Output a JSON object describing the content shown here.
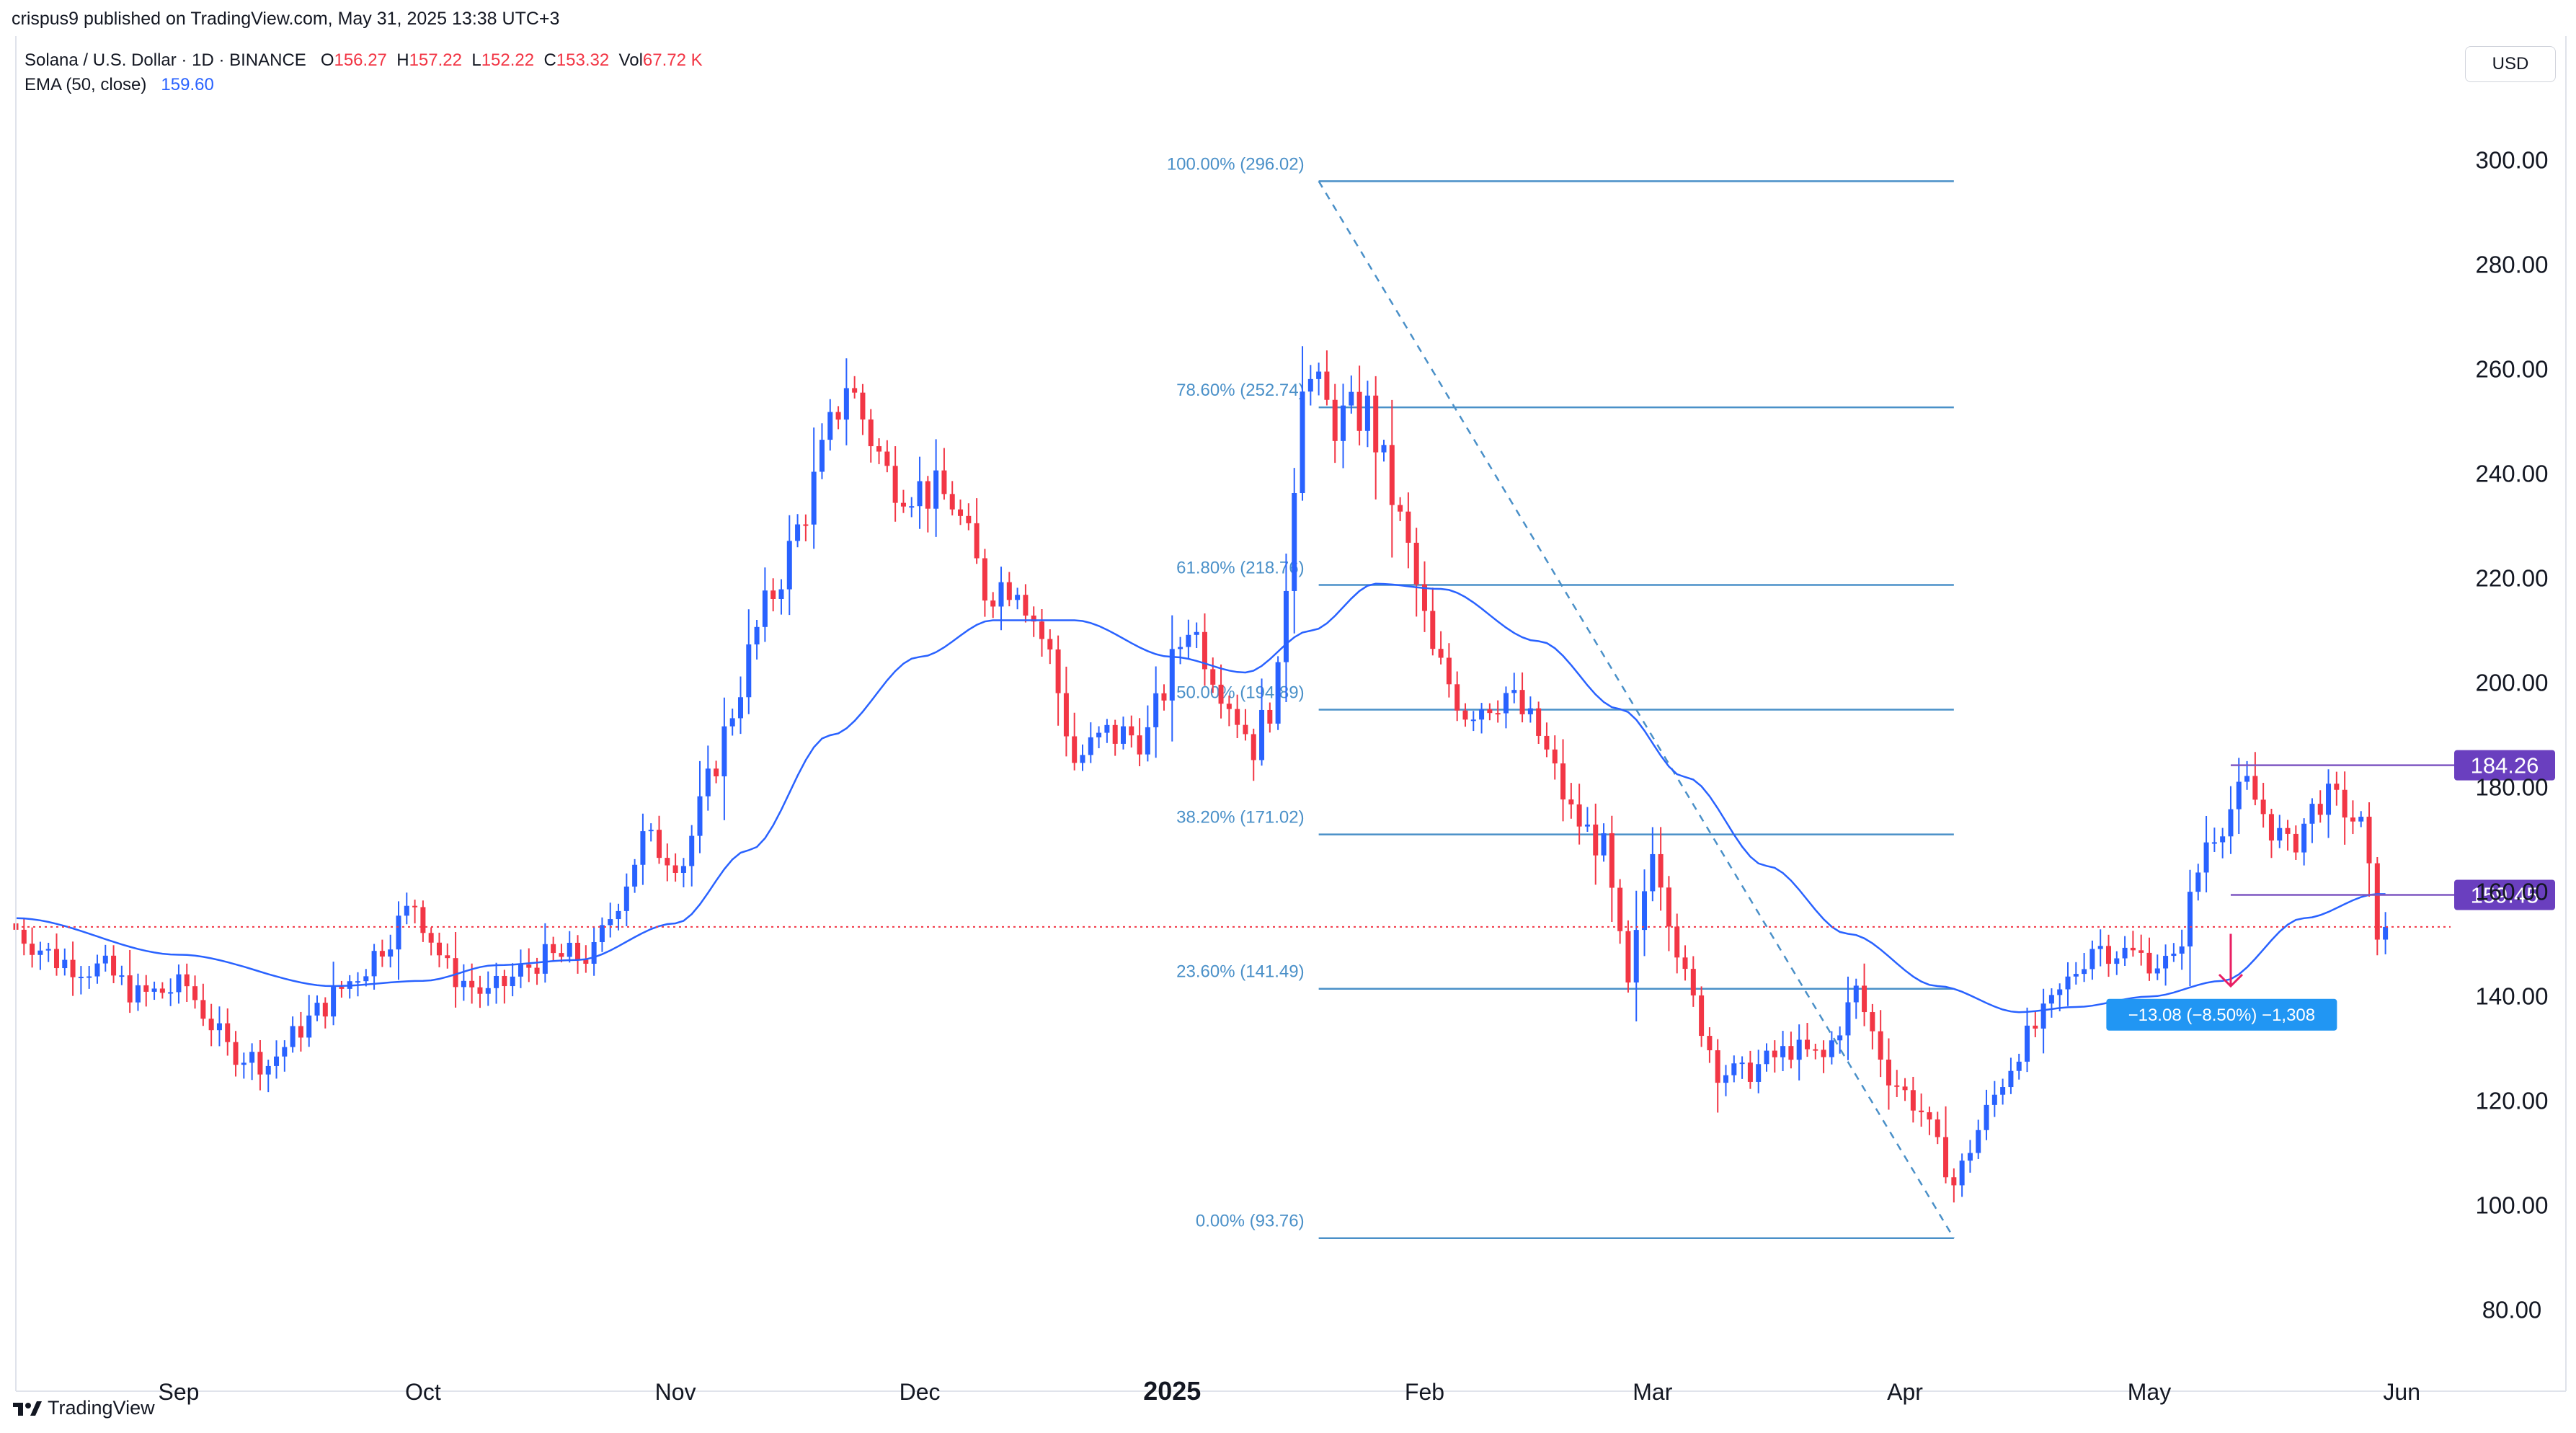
{
  "header": {
    "published_by": "crispus9 published on TradingView.com, May 31, 2025 13:38 UTC+3",
    "symbol": "Solana / U.S. Dollar · 1D · BINANCE",
    "o_label": "O",
    "o_value": "156.27",
    "h_label": "H",
    "h_value": "157.22",
    "l_label": "L",
    "l_value": "152.22",
    "c_label": "C",
    "c_value": "153.32",
    "vol_label": "Vol",
    "vol_value": "67.72 K",
    "ema_label": "EMA (50, close)",
    "ema_value": "159.60",
    "currency": "USD"
  },
  "footer": {
    "brand": "TradingView"
  },
  "colors": {
    "up": "#2962ff",
    "down": "#f23645",
    "ema": "#2962ff",
    "fib": "#4a90c8",
    "fib_text": "#4a90c8",
    "level_line": "#7e57c2",
    "badge": "#6a3fbf",
    "measure": "#2196f3",
    "arrow": "#e91e63",
    "close_dot": "#f23645"
  },
  "chart_data": {
    "type": "candlestick",
    "title": "Solana / U.S. Dollar · 1D · BINANCE",
    "ylim": [
      70,
      310
    ],
    "y_ticks": [
      80,
      100,
      120,
      140,
      160,
      180,
      200,
      220,
      240,
      260,
      280,
      300
    ],
    "y_tick_labels": [
      "80.00",
      "100.00",
      "120.00",
      "140.00",
      "160.00",
      "180.00",
      "200.00",
      "220.00",
      "240.00",
      "260.00",
      "280.00",
      "300.00"
    ],
    "x_range": [
      "2024-08-12",
      "2025-06-07"
    ],
    "x_ticks": [
      {
        "date": "2024-09-01",
        "label": "Sep",
        "bold": false
      },
      {
        "date": "2024-10-01",
        "label": "Oct",
        "bold": false
      },
      {
        "date": "2024-11-01",
        "label": "Nov",
        "bold": false
      },
      {
        "date": "2024-12-01",
        "label": "Dec",
        "bold": false
      },
      {
        "date": "2025-01-01",
        "label": "2025",
        "bold": true
      },
      {
        "date": "2025-02-01",
        "label": "Feb",
        "bold": false
      },
      {
        "date": "2025-03-01",
        "label": "Mar",
        "bold": false
      },
      {
        "date": "2025-04-01",
        "label": "Apr",
        "bold": false
      },
      {
        "date": "2025-05-01",
        "label": "May",
        "bold": false
      },
      {
        "date": "2025-06-01",
        "label": "Jun",
        "bold": false
      }
    ],
    "anchors": [
      [
        "2024-08-12",
        154
      ],
      [
        "2024-08-18",
        147
      ],
      [
        "2024-08-24",
        145
      ],
      [
        "2024-08-28",
        140
      ],
      [
        "2024-09-03",
        142
      ],
      [
        "2024-09-08",
        130
      ],
      [
        "2024-09-13",
        127
      ],
      [
        "2024-09-17",
        134
      ],
      [
        "2024-09-25",
        146
      ],
      [
        "2024-10-01",
        158
      ],
      [
        "2024-10-05",
        145
      ],
      [
        "2024-10-10",
        140
      ],
      [
        "2024-10-16",
        147
      ],
      [
        "2024-10-23",
        148
      ],
      [
        "2024-10-29",
        170
      ],
      [
        "2024-11-03",
        166
      ],
      [
        "2024-11-08",
        190
      ],
      [
        "2024-11-12",
        210
      ],
      [
        "2024-11-16",
        225
      ],
      [
        "2024-11-19",
        238
      ],
      [
        "2024-11-23",
        258
      ],
      [
        "2024-11-28",
        240
      ],
      [
        "2024-12-02",
        237
      ],
      [
        "2024-12-06",
        235
      ],
      [
        "2024-12-10",
        218
      ],
      [
        "2024-12-14",
        220
      ],
      [
        "2024-12-18",
        205
      ],
      [
        "2024-12-21",
        185
      ],
      [
        "2024-12-25",
        190
      ],
      [
        "2024-12-30",
        190
      ],
      [
        "2025-01-04",
        212
      ],
      [
        "2025-01-08",
        200
      ],
      [
        "2025-01-12",
        188
      ],
      [
        "2025-01-15",
        200
      ],
      [
        "2025-01-18",
        260
      ],
      [
        "2025-01-22",
        250
      ],
      [
        "2025-01-26",
        252
      ],
      [
        "2025-01-31",
        225
      ],
      [
        "2025-02-03",
        205
      ],
      [
        "2025-02-07",
        195
      ],
      [
        "2025-02-12",
        198
      ],
      [
        "2025-02-16",
        190
      ],
      [
        "2025-02-20",
        175
      ],
      [
        "2025-02-24",
        168
      ],
      [
        "2025-02-27",
        141
      ],
      [
        "2025-03-02",
        170
      ],
      [
        "2025-03-06",
        143
      ],
      [
        "2025-03-10",
        126
      ],
      [
        "2025-03-13",
        125
      ],
      [
        "2025-03-19",
        130
      ],
      [
        "2025-03-23",
        128
      ],
      [
        "2025-03-27",
        141
      ],
      [
        "2025-03-31",
        125
      ],
      [
        "2025-04-04",
        118
      ],
      [
        "2025-04-08",
        104
      ],
      [
        "2025-04-12",
        118
      ],
      [
        "2025-04-16",
        130
      ],
      [
        "2025-04-20",
        138
      ],
      [
        "2025-04-25",
        150
      ],
      [
        "2025-04-30",
        148
      ],
      [
        "2025-05-05",
        146
      ],
      [
        "2025-05-09",
        170
      ],
      [
        "2025-05-14",
        180
      ],
      [
        "2025-05-19",
        168
      ],
      [
        "2025-05-23",
        178
      ],
      [
        "2025-05-26",
        176
      ],
      [
        "2025-05-28",
        172
      ],
      [
        "2025-05-30",
        153.32
      ]
    ],
    "ema_anchors": [
      [
        "2024-08-12",
        155
      ],
      [
        "2024-09-01",
        148
      ],
      [
        "2024-09-20",
        142
      ],
      [
        "2024-10-01",
        143
      ],
      [
        "2024-10-10",
        146
      ],
      [
        "2024-10-20",
        147
      ],
      [
        "2024-11-01",
        154
      ],
      [
        "2024-11-10",
        168
      ],
      [
        "2024-11-20",
        190
      ],
      [
        "2024-12-01",
        205
      ],
      [
        "2024-12-10",
        212
      ],
      [
        "2024-12-20",
        212
      ],
      [
        "2025-01-01",
        205
      ],
      [
        "2025-01-10",
        202
      ],
      [
        "2025-01-18",
        210
      ],
      [
        "2025-01-26",
        219
      ],
      [
        "2025-02-03",
        218
      ],
      [
        "2025-02-15",
        208
      ],
      [
        "2025-02-25",
        195
      ],
      [
        "2025-03-05",
        182
      ],
      [
        "2025-03-15",
        165
      ],
      [
        "2025-03-25",
        152
      ],
      [
        "2025-04-05",
        142
      ],
      [
        "2025-04-15",
        137
      ],
      [
        "2025-04-22",
        138
      ],
      [
        "2025-05-01",
        140
      ],
      [
        "2025-05-10",
        143
      ],
      [
        "2025-05-20",
        155
      ],
      [
        "2025-05-29",
        159.6
      ],
      [
        "2025-05-30",
        159.6
      ]
    ],
    "fib": {
      "start_date": "2025-01-19",
      "end_date": "2025-04-07",
      "diag_start": [
        "2025-01-19",
        296.02
      ],
      "diag_end": [
        "2025-04-07",
        93.76
      ],
      "levels": [
        {
          "value": 296.02,
          "label": "100.00% (296.02)"
        },
        {
          "value": 252.74,
          "label": "78.60% (252.74)"
        },
        {
          "value": 218.76,
          "label": "61.80% (218.76)"
        },
        {
          "value": 194.89,
          "label": "50.00% (194.89)"
        },
        {
          "value": 171.02,
          "label": "38.20% (171.02)"
        },
        {
          "value": 141.49,
          "label": "23.60% (141.49)"
        },
        {
          "value": 93.76,
          "label": "0.00% (93.76)"
        }
      ]
    },
    "levels": [
      {
        "value": 184.26,
        "label": "184.26",
        "start_date": "2025-05-11"
      },
      {
        "value": 159.45,
        "label": "159.45",
        "start_date": "2025-05-11"
      }
    ],
    "last_close": 153.32,
    "measure": {
      "label": "−13.08 (−8.50%) −1,308",
      "date": "2025-05-09",
      "value": 139
    },
    "arrow": {
      "date": "2025-05-11",
      "from": 152,
      "to": 142
    }
  }
}
